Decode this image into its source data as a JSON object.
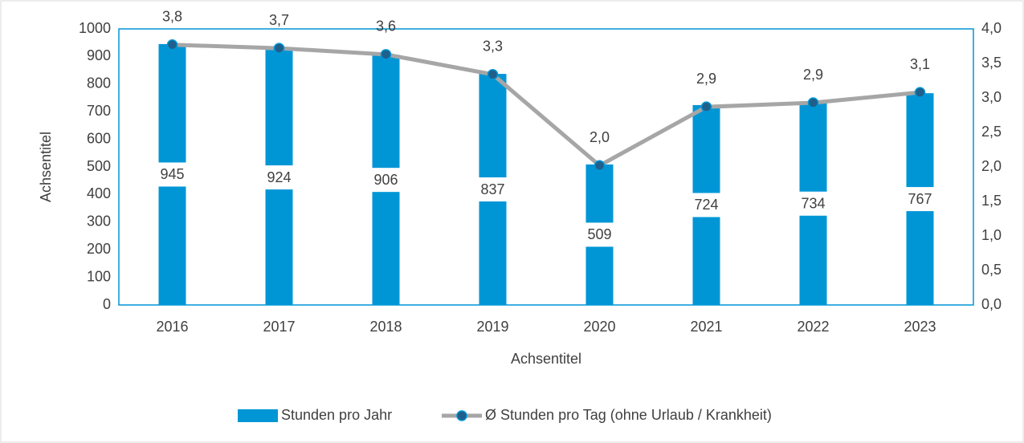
{
  "chart_data": {
    "type": "bar",
    "categories": [
      "2016",
      "2017",
      "2018",
      "2019",
      "2020",
      "2021",
      "2022",
      "2023"
    ],
    "series": [
      {
        "name": "Stunden pro Jahr",
        "type": "bar",
        "color": "#0096d6",
        "values": [
          945,
          924,
          906,
          837,
          509,
          724,
          734,
          767
        ]
      },
      {
        "name": "Ø Stunden pro Tag (ohne Urlaub / Krankheit)",
        "type": "line",
        "axis": "y2",
        "color": "#a6a6a6",
        "marker_color": "#1f5f8b",
        "values": [
          3.77,
          3.72,
          3.63,
          3.34,
          2.02,
          2.87,
          2.93,
          3.08
        ],
        "value_labels": [
          "3,8",
          "3,7",
          "3,6",
          "3,3",
          "2,0",
          "2,9",
          "2,9",
          "3,1"
        ]
      }
    ],
    "xlabel": "Achsentitel",
    "ylabel": "Achsentitel",
    "ylim": [
      0,
      1000
    ],
    "yticks": [
      0,
      100,
      200,
      300,
      400,
      500,
      600,
      700,
      800,
      900,
      1000
    ],
    "y2lim": [
      0,
      4
    ],
    "y2ticks": [
      {
        "value": 0,
        "label": "0,0"
      },
      {
        "value": 0.5,
        "label": "0,5"
      },
      {
        "value": 1,
        "label": "1,0"
      },
      {
        "value": 1.5,
        "label": "1,5"
      },
      {
        "value": 2,
        "label": "2,0"
      },
      {
        "value": 2.5,
        "label": "2,5"
      },
      {
        "value": 3,
        "label": "3,0"
      },
      {
        "value": 3.5,
        "label": "3,5"
      },
      {
        "value": 4,
        "label": "4,0"
      }
    ],
    "grid": false,
    "legend": "bottom"
  }
}
